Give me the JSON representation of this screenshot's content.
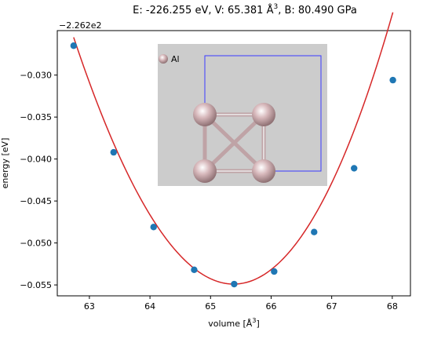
{
  "chart_data": {
    "type": "scatter",
    "title": "E: -226.255 eV, V: 65.381 Å³, B: 80.490 GPa",
    "title_parts": {
      "before": "E: -226.255 eV, V: 65.381 Å",
      "sup": "3",
      "after": ", B: 80.490 GPa"
    },
    "xlabel": "volume [Å³]",
    "xlabel_parts": {
      "before": "volume [Å",
      "sup": "3",
      "after": "]"
    },
    "ylabel": "energy [eV]",
    "y_offset_label": "−2.262e2",
    "xlim": [
      62.47,
      68.3
    ],
    "ylim": [
      -0.0563,
      -0.0247
    ],
    "x_ticks": [
      63,
      64,
      65,
      66,
      67,
      68
    ],
    "y_ticks": [
      -0.03,
      -0.035,
      -0.04,
      -0.045,
      -0.05,
      -0.055
    ],
    "x_tick_labels": [
      "63",
      "64",
      "65",
      "66",
      "67",
      "68"
    ],
    "y_tick_labels": [
      "−0.030",
      "−0.035",
      "−0.040",
      "−0.045",
      "−0.050",
      "−0.055"
    ],
    "series": [
      {
        "kind": "points",
        "color": "#1f77b4",
        "x": [
          62.74,
          63.4,
          64.06,
          64.73,
          65.39,
          66.05,
          66.71,
          67.37,
          68.01
        ],
        "y": [
          -0.0265,
          -0.0392,
          -0.0481,
          -0.0532,
          -0.0549,
          -0.0534,
          -0.0487,
          -0.0411,
          -0.0306
        ]
      },
      {
        "kind": "fit-curve",
        "color": "#d62728",
        "fit": {
          "E0": -0.0549,
          "V0": 65.381,
          "a": 0.00445
        }
      }
    ],
    "inset": {
      "legend_label": "Al",
      "background": "#cccccc",
      "cell_color": "#0000ff",
      "atom_color": "#d7b8bb"
    }
  }
}
